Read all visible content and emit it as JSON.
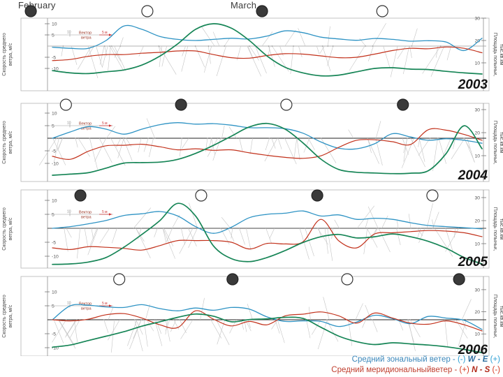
{
  "months": {
    "february": "February",
    "march": "March"
  },
  "axes": {
    "left_label_line1": "Скорость среднего",
    "left_label_line2": "ветра, м/с",
    "right_label_line1": "Площадь полыньи,",
    "right_label_line2": "тыс.кв.км",
    "wind_ticks": [
      10,
      5,
      -5,
      -10
    ],
    "area_ticks": [
      30,
      20,
      10
    ]
  },
  "vector_legend": {
    "tick": "10",
    "label_line1": "Вектор",
    "label_line2": "ветра",
    "scale_text": "5 м"
  },
  "bottom_legend": {
    "zonal": {
      "prefix": "Средний зональный ветер - ",
      "sign_neg": "(-)",
      "dirs": "W - E",
      "sign_pos": "(+)"
    },
    "meridional": {
      "prefix": "Средний меридиональныйветер - ",
      "sign_pos": "(+)",
      "dirs": "N - S",
      "sign_neg": "(-)"
    }
  },
  "colors": {
    "zonal": "#2E93C4",
    "meridional": "#C2311B",
    "area": "#168556",
    "axis": "#9a9a9a",
    "frame": "#bdbdbd",
    "hairline": "#c4c4c4",
    "year": "#141414",
    "moon_dark": "#3a3a3a",
    "tick_text": "#555555"
  },
  "chart_data": {
    "type": "line",
    "x_labels": [
      "February",
      "March"
    ],
    "x_samples": "25 evenly spaced points spanning February–March",
    "ylabel_left": "Скорость среднего ветра, м/с",
    "ylabel_right": "Площадь полыньи, тыс.кв.км",
    "wind_axis_ticks": [
      10,
      5,
      -5,
      -10
    ],
    "area_axis_ticks": [
      30,
      20,
      10
    ],
    "panels": [
      {
        "year": "2003",
        "moons": [
          {
            "x_frac": 0.021,
            "phase": "new"
          },
          {
            "x_frac": 0.27,
            "phase": "full"
          },
          {
            "x_frac": 0.515,
            "phase": "new"
          },
          {
            "x_frac": 0.772,
            "phase": "full"
          }
        ],
        "series": [
          {
            "name": "zonal_wind_ms",
            "values": [
              -0.5,
              -1,
              -1,
              2.5,
              9,
              7.5,
              4.3,
              3,
              2.5,
              3,
              3.5,
              3.2,
              4.5,
              6.8,
              6,
              4,
              3.2,
              2.6,
              3.4,
              3,
              2.2,
              2.4,
              1.8,
              -2,
              3.5
            ]
          },
          {
            "name": "meridional_wind_ms",
            "values": [
              -6.5,
              -6,
              -4.6,
              -3.8,
              -3.8,
              -3.2,
              -2.8,
              -2.2,
              -2.2,
              -3.8,
              -5.2,
              -5.4,
              -4.2,
              -3.4,
              -3.6,
              -4.4,
              -5.2,
              -5,
              -3.6,
              -2,
              -1,
              -1.2,
              -0.4,
              -1,
              -3
            ]
          },
          {
            "name": "polynya_area_thousand_km2",
            "values": [
              6.5,
              5.5,
              5.2,
              6,
              6.8,
              9,
              13,
              18.5,
              25,
              27.5,
              25.5,
              20,
              13,
              8,
              5.5,
              4.2,
              4.5,
              6,
              7.5,
              7.8,
              7.2,
              7,
              6.2,
              5.5,
              5
            ]
          }
        ]
      },
      {
        "year": "2004",
        "moons": [
          {
            "x_frac": 0.096,
            "phase": "full"
          },
          {
            "x_frac": 0.342,
            "phase": "new"
          },
          {
            "x_frac": 0.567,
            "phase": "full"
          },
          {
            "x_frac": 0.816,
            "phase": "new"
          }
        ],
        "series": [
          {
            "name": "zonal_wind_ms",
            "values": [
              0,
              2.5,
              4.6,
              3.6,
              1.6,
              3.6,
              5.4,
              6.2,
              5.6,
              5.8,
              5.2,
              4.2,
              4.2,
              3.8,
              2,
              -1.5,
              -4,
              -4.2,
              -2.2,
              1.8,
              0.5,
              -0.8,
              -0.2,
              -0.8,
              -2
            ]
          },
          {
            "name": "meridional_wind_ms",
            "values": [
              -7.2,
              -8.4,
              -5.2,
              -3,
              -2.8,
              -2.4,
              -3.4,
              -4.6,
              -4.2,
              -4.8,
              -4.6,
              -5.8,
              -6.8,
              -7.6,
              -8,
              -7,
              -3.6,
              -0.8,
              -0.6,
              -1.4,
              -2.5,
              3.4,
              3.2,
              1.5,
              -0.8
            ]
          },
          {
            "name": "polynya_area_thousand_km2",
            "values": [
              1.5,
              2,
              2.6,
              4.6,
              6.8,
              7,
              7.2,
              8.4,
              11,
              14.5,
              18.5,
              22.5,
              24,
              21.5,
              15.5,
              8.5,
              4,
              2.8,
              2.5,
              2.2,
              2.4,
              3.5,
              11,
              23,
              13
            ]
          }
        ]
      },
      {
        "year": "2005",
        "moons": [
          {
            "x_frac": 0.127,
            "phase": "new"
          },
          {
            "x_frac": 0.385,
            "phase": "full"
          },
          {
            "x_frac": 0.633,
            "phase": "new"
          },
          {
            "x_frac": 0.879,
            "phase": "full"
          }
        ],
        "series": [
          {
            "name": "zonal_wind_ms",
            "values": [
              0,
              0.6,
              1.6,
              2.8,
              4.6,
              5.2,
              6,
              4.4,
              0.6,
              -1.8,
              0.4,
              3.8,
              5,
              5.4,
              6.2,
              4.4,
              4.8,
              3.2,
              3.6,
              3.2,
              2,
              1,
              0.6,
              0.2,
              -0.2
            ]
          },
          {
            "name": "meridional_wind_ms",
            "values": [
              -7,
              -7.6,
              -6.6,
              -6.8,
              -7.2,
              -7.8,
              -6.2,
              -4.4,
              -4.4,
              -4.4,
              -5,
              -7.4,
              -5.4,
              -5.6,
              -4.8,
              3.2,
              -4.5,
              -7,
              -2,
              -1.6,
              -1.2,
              -0.8,
              -1,
              -1.6,
              -3
            ]
          },
          {
            "name": "polynya_area_thousand_km2",
            "values": [
              1,
              1.2,
              2,
              4,
              8.5,
              14,
              20,
              27.5,
              22,
              9,
              3.5,
              2.2,
              4,
              7,
              10.5,
              13,
              14,
              12.5,
              13,
              14.2,
              13,
              11,
              8,
              4,
              1.2
            ]
          }
        ]
      },
      {
        "year": "2006",
        "moons": [
          {
            "x_frac": 0.21,
            "phase": "full"
          },
          {
            "x_frac": 0.452,
            "phase": "new"
          },
          {
            "x_frac": 0.697,
            "phase": "full"
          },
          {
            "x_frac": 0.936,
            "phase": "new"
          }
        ],
        "series": [
          {
            "name": "zonal_wind_ms",
            "values": [
              0,
              5,
              5.2,
              4.6,
              4.4,
              5.4,
              4,
              3.2,
              4.2,
              3.4,
              4.4,
              3.8,
              1,
              -0.6,
              -0.4,
              -0.6,
              -2.4,
              -0.8,
              1.6,
              0.4,
              -1.4,
              1.2,
              0.6,
              -0.2,
              -3.5
            ]
          },
          {
            "name": "meridional_wind_ms",
            "values": [
              0,
              -0.4,
              0.2,
              1.8,
              2.2,
              0.6,
              -1.8,
              -2.8,
              3.2,
              0.2,
              -2.2,
              -0.6,
              -1.8,
              1.4,
              2,
              2.8,
              1.4,
              -1.2,
              2.4,
              0.6,
              -1.2,
              -1.6,
              -0.4,
              -1.8,
              -4
            ]
          },
          {
            "name": "polynya_area_thousand_km2",
            "values": [
              4,
              5,
              7,
              9,
              11,
              13.5,
              15.5,
              17.5,
              19,
              18,
              15.5,
              16.5,
              16.8,
              17.5,
              17,
              13,
              9,
              6.5,
              5.2,
              6,
              5.5,
              5,
              4.2,
              3,
              1.5
            ]
          }
        ]
      }
    ]
  }
}
